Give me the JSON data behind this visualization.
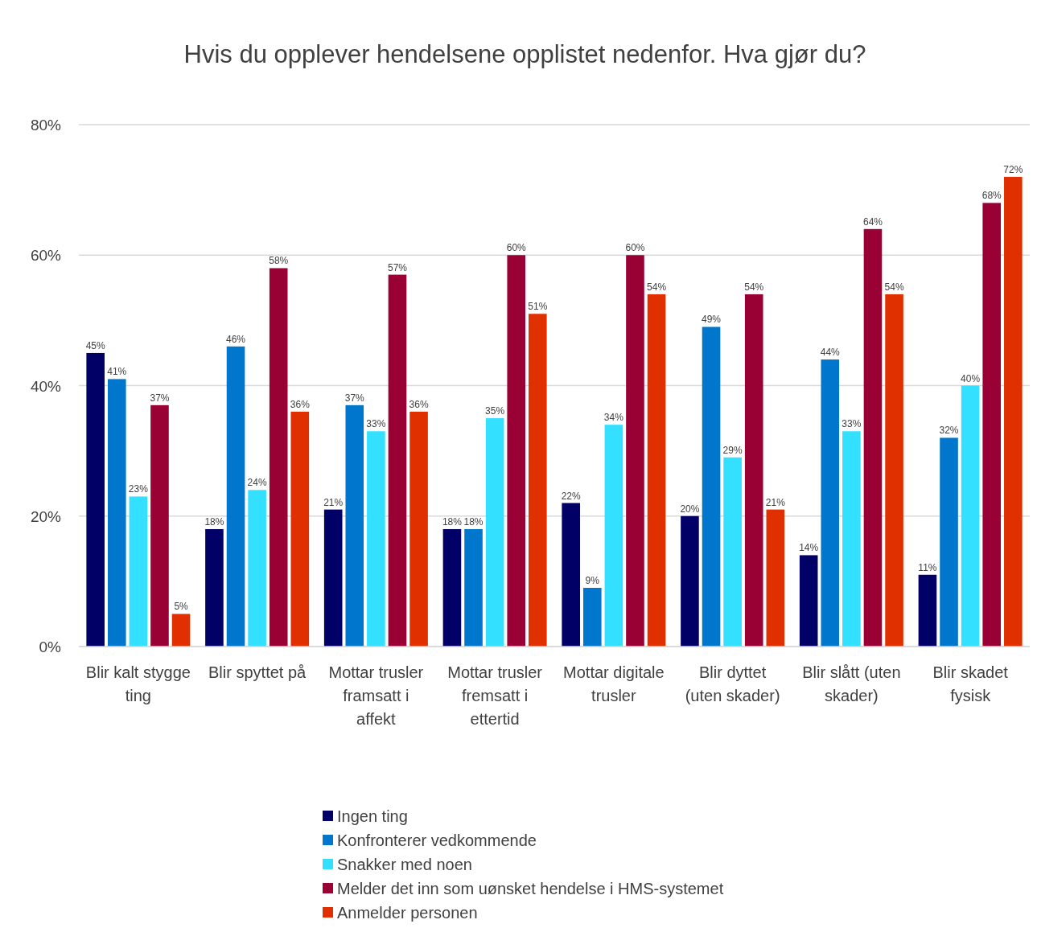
{
  "chart_data": {
    "type": "bar",
    "title": "Hvis du opplever hendelsene opplistet nedenfor. Hva gjør du?",
    "categories": [
      "Blir kalt stygge ting",
      "Blir spyttet på",
      "Mottar trusler framsatt i affekt",
      "Mottar trusler fremsatt i ettertid",
      "Mottar digitale trusler",
      "Blir dyttet (uten skader)",
      "Blir slått (uten skader)",
      "Blir skadet fysisk"
    ],
    "series": [
      {
        "name": "Ingen ting",
        "color": "#000066",
        "values": [
          45,
          18,
          21,
          18,
          22,
          20,
          14,
          11
        ],
        "value_labels": [
          "45%",
          "18%",
          "21%",
          "18%",
          "22%",
          "20%",
          "14%",
          "11%"
        ]
      },
      {
        "name": "Konfronterer vedkommende",
        "color": "#0077cc",
        "values": [
          41,
          46,
          37,
          18,
          9,
          49,
          44,
          32
        ],
        "value_labels": [
          "41%",
          "46%",
          "37%",
          "18%",
          "9%",
          "49%",
          "44%",
          "32%"
        ]
      },
      {
        "name": "Snakker med noen",
        "color": "#33e0ff",
        "values": [
          23,
          24,
          33,
          35,
          34,
          29,
          33,
          40
        ],
        "value_labels": [
          "23%",
          "24%",
          "33%",
          "35%",
          "34%",
          "29%",
          "33%",
          "40%"
        ]
      },
      {
        "name": "Melder det inn som uønsket hendelse i HMS-systemet",
        "color": "#990033",
        "values": [
          37,
          58,
          57,
          60,
          60,
          54,
          64,
          68
        ],
        "value_labels": [
          "37%",
          "58%",
          "57%",
          "60%",
          "60%",
          "54%",
          "64%",
          "68%"
        ]
      },
      {
        "name": "Anmelder personen",
        "color": "#e03000",
        "values": [
          5,
          36,
          36,
          51,
          54,
          21,
          54,
          72
        ],
        "value_labels": [
          "5%",
          "36%",
          "36%",
          "51%",
          "54%",
          "21%",
          "54%",
          "72%"
        ]
      }
    ],
    "ylim": [
      0,
      80
    ],
    "yticks": [
      {
        "value": 0,
        "label": "0%"
      },
      {
        "value": 20,
        "label": "20%"
      },
      {
        "value": 40,
        "label": "40%"
      },
      {
        "value": 60,
        "label": "60%"
      },
      {
        "value": 80,
        "label": "80%"
      }
    ],
    "grid": "y",
    "legend": "bottom"
  }
}
